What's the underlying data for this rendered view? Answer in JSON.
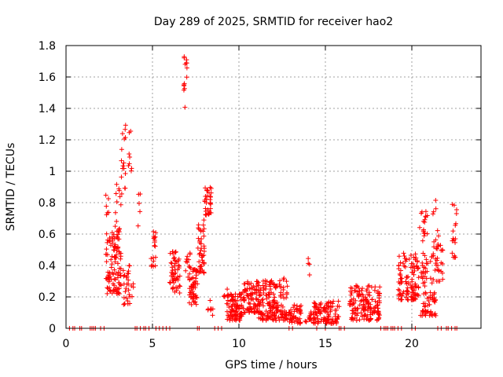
{
  "chart_data": {
    "type": "scatter",
    "title": "Day 289 of 2025, SRMTID for receiver hao2",
    "xlabel": "GPS time / hours",
    "ylabel": "SRMTID / TECUs",
    "xlim": [
      0,
      24
    ],
    "ylim": [
      0,
      1.8
    ],
    "x_ticks": [
      0,
      5,
      10,
      15,
      20
    ],
    "x_tick_labels": [
      "0",
      "5",
      "10",
      "15",
      "20"
    ],
    "y_ticks": [
      0,
      0.2,
      0.4,
      0.6,
      0.8,
      1.0,
      1.2,
      1.4,
      1.6,
      1.8
    ],
    "y_tick_labels": [
      "0",
      "0.2",
      "0.4",
      "0.6",
      "0.8",
      "1",
      "1.2",
      "1.4",
      "1.6",
      "1.8"
    ],
    "grid": true,
    "marker": "+",
    "color": "#ff0000",
    "series": [
      {
        "name": "SRMTID",
        "clusters": [
          {
            "x0": 2.3,
            "x1": 3.2,
            "y0": 0.22,
            "y1": 0.62,
            "n": 110
          },
          {
            "x0": 2.3,
            "x1": 2.5,
            "y0": 0.72,
            "y1": 0.9,
            "n": 6
          },
          {
            "x0": 2.8,
            "x1": 3.2,
            "y0": 0.6,
            "y1": 0.92,
            "n": 14
          },
          {
            "x0": 3.2,
            "x1": 3.5,
            "y0": 0.85,
            "y1": 1.3,
            "n": 16
          },
          {
            "x0": 3.3,
            "x1": 3.7,
            "y0": 0.15,
            "y1": 0.4,
            "n": 25
          },
          {
            "x0": 3.6,
            "x1": 3.8,
            "y0": 1.0,
            "y1": 1.27,
            "n": 8
          },
          {
            "x0": 3.6,
            "x1": 3.9,
            "y0": 0.2,
            "y1": 0.35,
            "n": 6
          },
          {
            "x0": 4.1,
            "x1": 4.3,
            "y0": 0.6,
            "y1": 0.88,
            "n": 5
          },
          {
            "x0": 4.9,
            "x1": 5.2,
            "y0": 0.38,
            "y1": 0.62,
            "n": 18
          },
          {
            "x0": 6.0,
            "x1": 6.6,
            "y0": 0.22,
            "y1": 0.5,
            "n": 55
          },
          {
            "x0": 6.8,
            "x1": 7.0,
            "y0": 1.4,
            "y1": 1.75,
            "n": 14
          },
          {
            "x0": 6.9,
            "x1": 7.2,
            "y0": 0.3,
            "y1": 0.55,
            "n": 10
          },
          {
            "x0": 7.1,
            "x1": 7.6,
            "y0": 0.15,
            "y1": 0.4,
            "n": 55
          },
          {
            "x0": 7.6,
            "x1": 8.0,
            "y0": 0.35,
            "y1": 0.7,
            "n": 45
          },
          {
            "x0": 8.0,
            "x1": 8.4,
            "y0": 0.72,
            "y1": 0.9,
            "n": 35
          },
          {
            "x0": 8.2,
            "x1": 8.5,
            "y0": 0.08,
            "y1": 0.2,
            "n": 8
          },
          {
            "x0": 9.1,
            "x1": 9.4,
            "y0": 0.2,
            "y1": 0.28,
            "n": 6
          },
          {
            "x0": 9.3,
            "x1": 10.2,
            "y0": 0.05,
            "y1": 0.22,
            "n": 90
          },
          {
            "x0": 10.2,
            "x1": 11.2,
            "y0": 0.1,
            "y1": 0.3,
            "n": 80
          },
          {
            "x0": 11.0,
            "x1": 12.8,
            "y0": 0.05,
            "y1": 0.32,
            "n": 170
          },
          {
            "x0": 12.8,
            "x1": 13.6,
            "y0": 0.03,
            "y1": 0.15,
            "n": 50
          },
          {
            "x0": 13.9,
            "x1": 14.1,
            "y0": 0.32,
            "y1": 0.45,
            "n": 4
          },
          {
            "x0": 13.8,
            "x1": 14.2,
            "y0": 0.04,
            "y1": 0.12,
            "n": 14
          },
          {
            "x0": 14.3,
            "x1": 15.8,
            "y0": 0.03,
            "y1": 0.18,
            "n": 110
          },
          {
            "x0": 16.4,
            "x1": 18.2,
            "y0": 0.05,
            "y1": 0.28,
            "n": 150
          },
          {
            "x0": 19.2,
            "x1": 20.4,
            "y0": 0.18,
            "y1": 0.48,
            "n": 110
          },
          {
            "x0": 20.4,
            "x1": 20.9,
            "y0": 0.55,
            "y1": 0.77,
            "n": 18
          },
          {
            "x0": 20.5,
            "x1": 21.4,
            "y0": 0.08,
            "y1": 0.48,
            "n": 80
          },
          {
            "x0": 21.2,
            "x1": 21.6,
            "y0": 0.5,
            "y1": 0.83,
            "n": 12
          },
          {
            "x0": 21.4,
            "x1": 21.8,
            "y0": 0.3,
            "y1": 0.55,
            "n": 22
          },
          {
            "x0": 22.3,
            "x1": 22.6,
            "y0": 0.6,
            "y1": 0.89,
            "n": 7
          },
          {
            "x0": 22.3,
            "x1": 22.6,
            "y0": 0.45,
            "y1": 0.58,
            "n": 10
          }
        ],
        "zero_points": [
          0.2,
          0.4,
          0.5,
          0.8,
          0.9,
          1.4,
          1.5,
          1.6,
          1.7,
          2.0,
          2.2,
          4.0,
          4.1,
          4.3,
          4.5,
          4.6,
          4.8,
          5.2,
          5.4,
          5.6,
          5.8,
          6.0,
          7.6,
          7.7,
          8.6,
          8.8,
          9.0,
          12.9,
          13.1,
          14.5,
          15.0,
          15.8,
          15.9,
          16.1,
          18.2,
          18.4,
          18.5,
          18.6,
          18.8,
          18.9,
          19.0,
          19.2,
          19.4,
          20.0,
          20.2,
          21.5,
          21.7,
          22.0,
          22.1,
          22.3,
          22.5,
          22.6
        ]
      }
    ]
  }
}
